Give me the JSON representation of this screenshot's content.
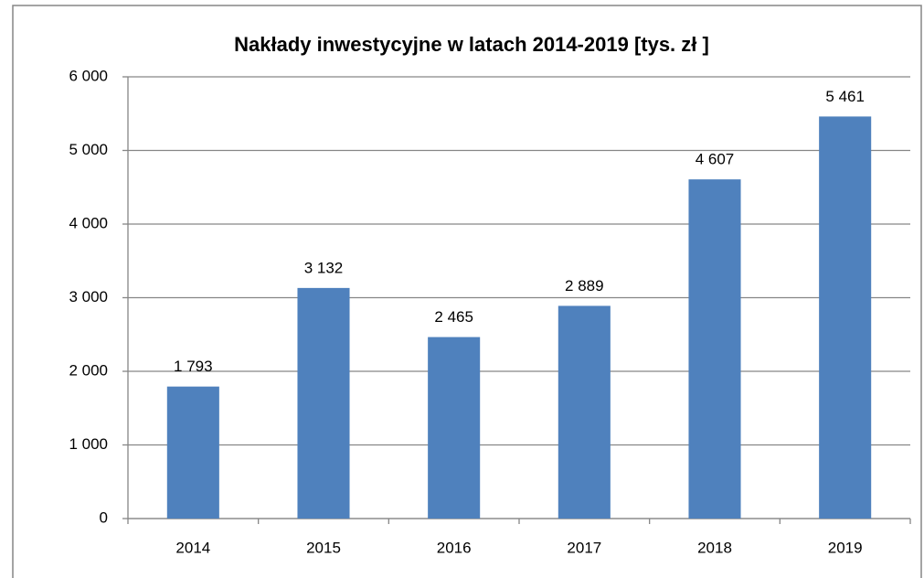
{
  "chart_data": {
    "type": "bar",
    "title": "Nakłady inwestycyjne w latach 2014-2019 [tys. zł ]",
    "categories": [
      "2014",
      "2015",
      "2016",
      "2017",
      "2018",
      "2019"
    ],
    "values": [
      1793,
      3132,
      2465,
      2889,
      4607,
      5461
    ],
    "value_labels": [
      "1 793",
      "3 132",
      "2 465",
      "2 889",
      "4 607",
      "5 461"
    ],
    "color": "#4f81bd",
    "ylim": [
      0,
      6000
    ],
    "yticks": [
      0,
      {
        "value": 1000,
        "label": "1 000"
      },
      {
        "value": 2000,
        "label": "2 000"
      },
      {
        "value": 3000,
        "label": "3 000"
      },
      {
        "value": 4000,
        "label": "4 000"
      },
      {
        "value": 5000,
        "label": "5 000"
      },
      {
        "value": 6000,
        "label": "6 000"
      }
    ],
    "grid": true
  }
}
